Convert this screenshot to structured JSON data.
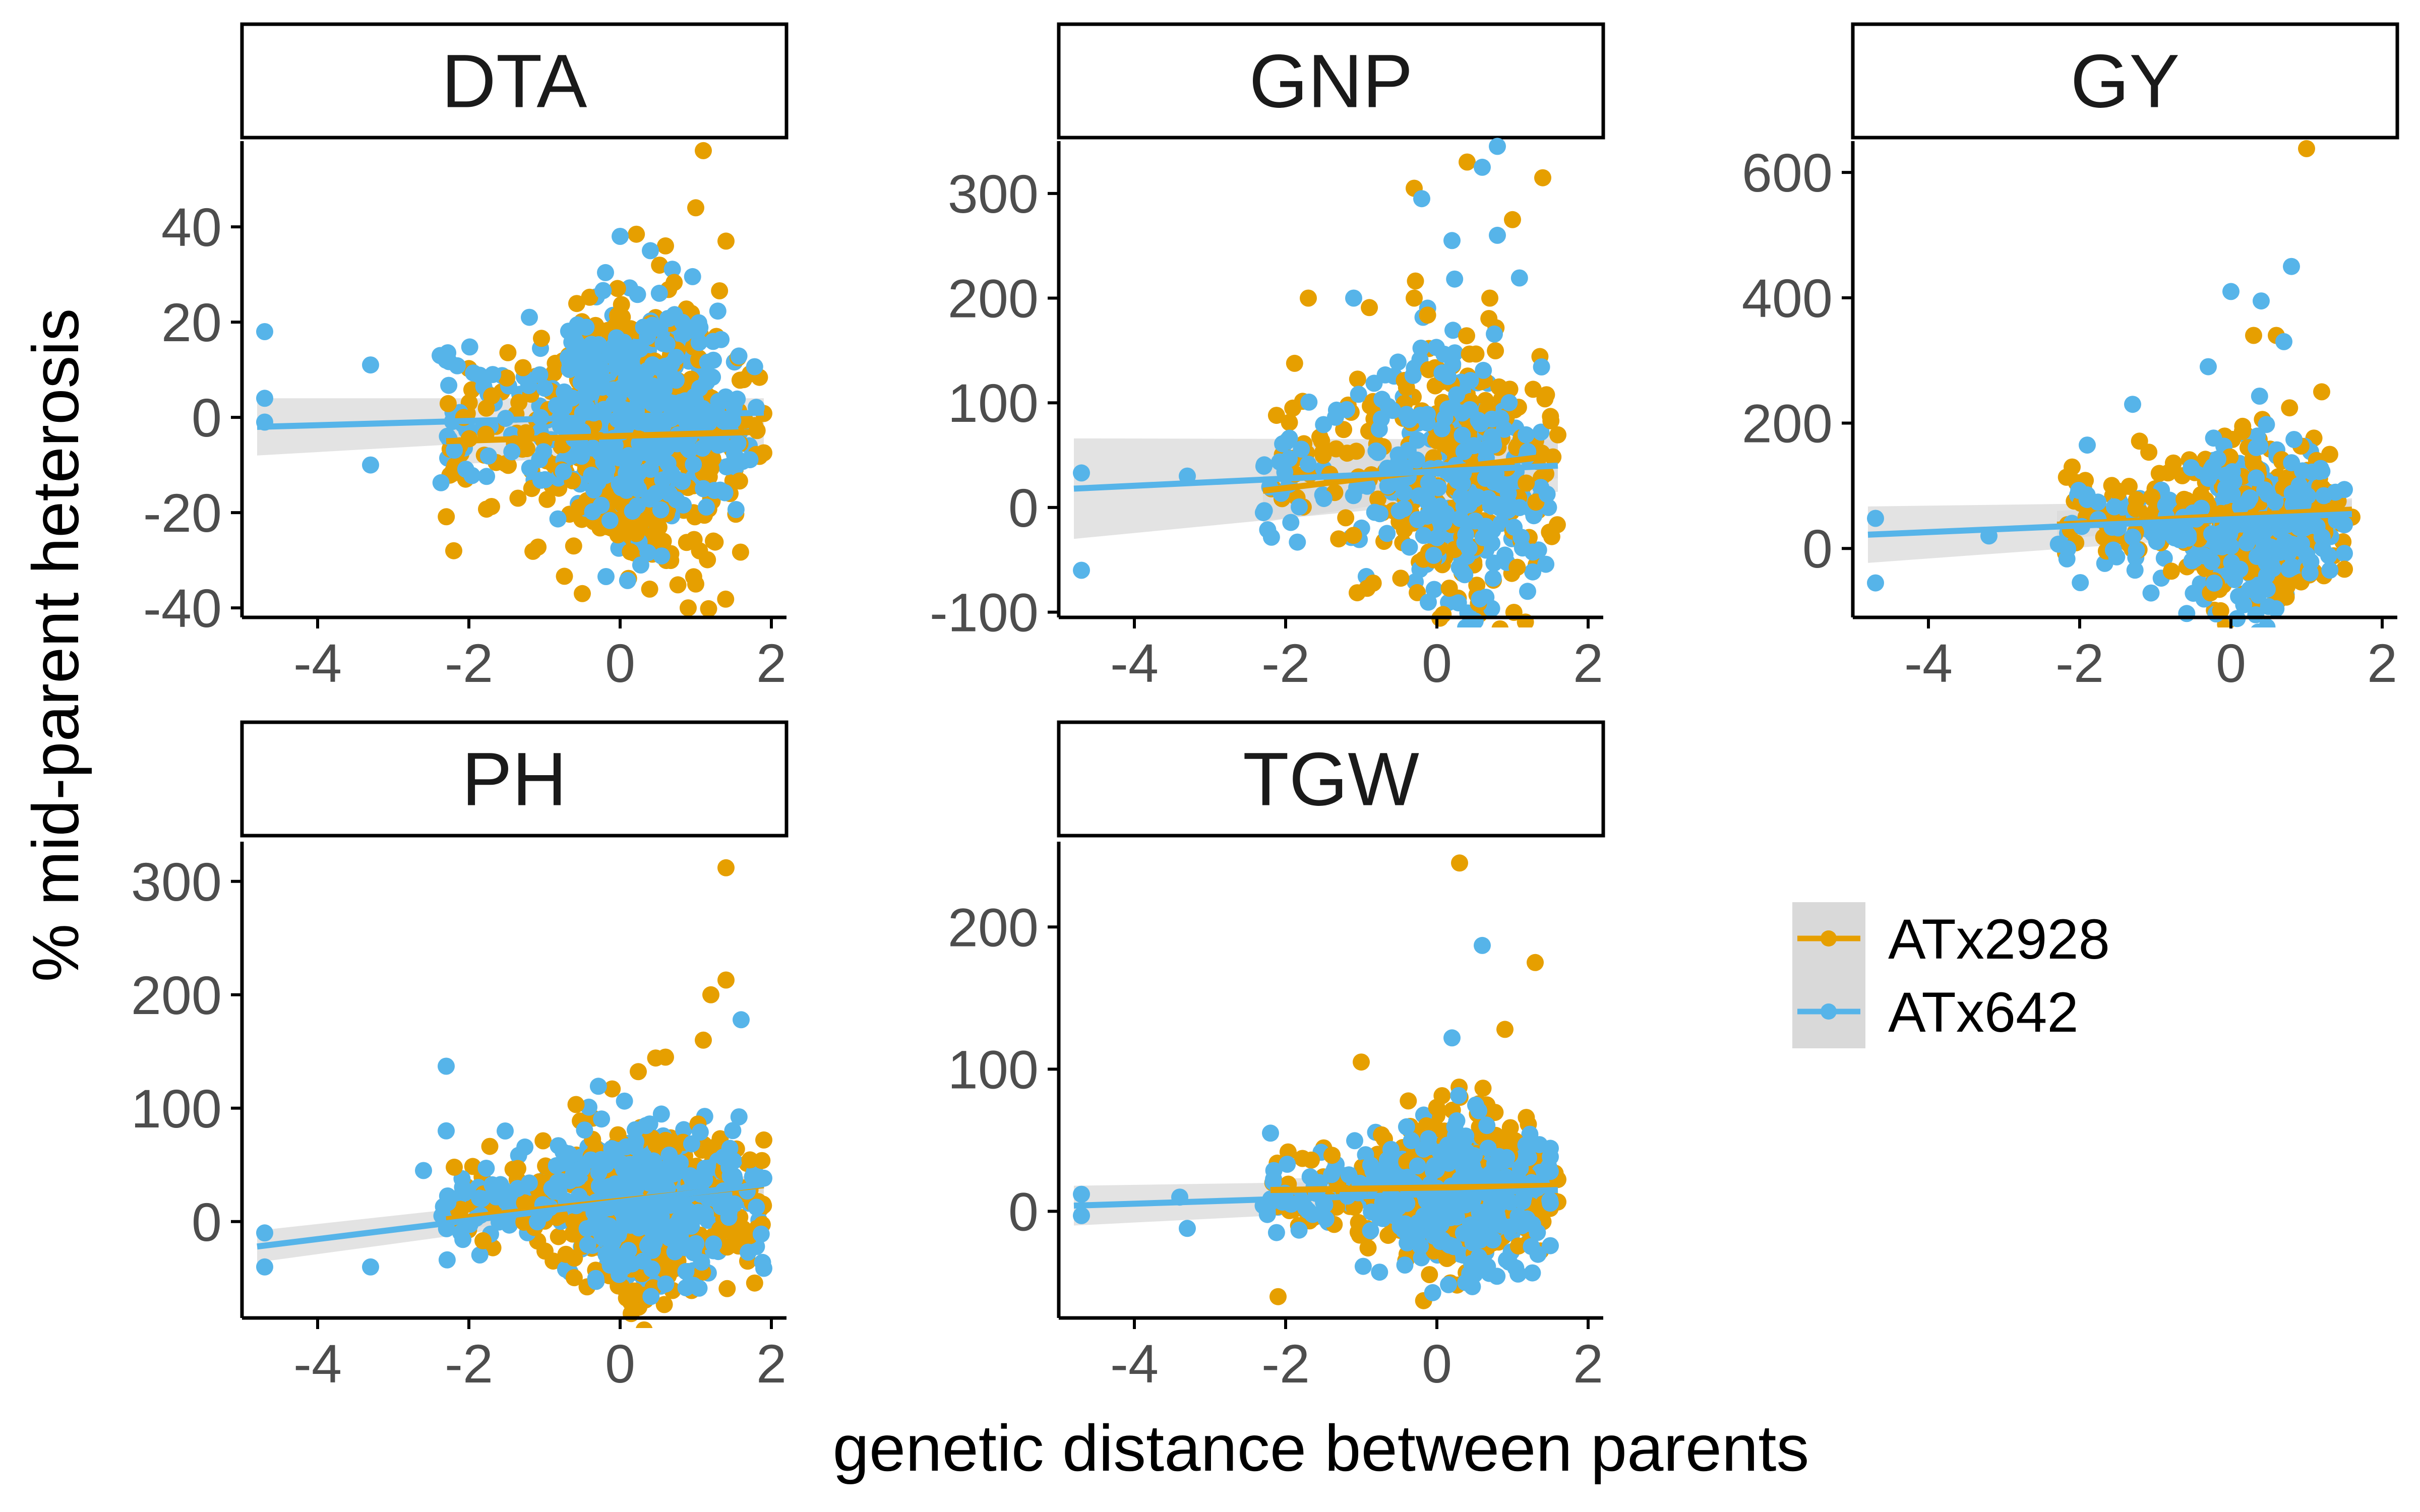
{
  "figure": {
    "ylabel": "% mid-parent heterosis",
    "xlabel": "genetic distance between parents"
  },
  "legend": {
    "items": [
      {
        "label": "ATx2928",
        "color": "#E69F00"
      },
      {
        "label": "ATx642",
        "color": "#56B4E9"
      }
    ],
    "band_color": "#d9d9d9"
  },
  "chart_data": [
    {
      "type": "scatter",
      "title": "DTA",
      "xlim": [
        -5,
        2.2
      ],
      "ylim": [
        -42,
        58
      ],
      "xticks": [
        -4,
        -2,
        0,
        2
      ],
      "yticks": [
        -40,
        -20,
        0,
        20,
        40
      ],
      "series": [
        {
          "name": "ATx2928",
          "line": {
            "x": [
              -2.3,
              1.9
            ],
            "y": [
              -5,
              -3
            ]
          },
          "band": [
            5,
            3
          ],
          "cloud": {
            "x_range": [
              -2.3,
              1.9
            ],
            "y_center": -4,
            "y_spread": 15,
            "n": 520
          },
          "points": [
            [
              1.1,
              56
            ],
            [
              1.0,
              44
            ],
            [
              1.4,
              37
            ],
            [
              0.6,
              36
            ],
            [
              -0.5,
              -37
            ],
            [
              0.9,
              -40
            ],
            [
              1.0,
              -35
            ],
            [
              -2.2,
              -28
            ]
          ]
        },
        {
          "name": "ATx642",
          "line": {
            "x": [
              -4.8,
              1.9
            ],
            "y": [
              -2,
              1
            ]
          },
          "band": [
            6,
            3
          ],
          "cloud": {
            "x_range": [
              -2.4,
              1.8
            ],
            "y_center": 0,
            "y_spread": 12,
            "n": 520
          },
          "points": [
            [
              -4.7,
              18
            ],
            [
              -4.7,
              4
            ],
            [
              -4.7,
              -1
            ],
            [
              -3.3,
              11
            ],
            [
              -3.3,
              -10
            ],
            [
              0.0,
              38
            ],
            [
              0.4,
              35
            ],
            [
              -1.2,
              21
            ],
            [
              -2.3,
              12
            ]
          ]
        }
      ]
    },
    {
      "type": "scatter",
      "title": "GNP",
      "xlim": [
        -5,
        2.2
      ],
      "ylim": [
        -105,
        350
      ],
      "xticks": [
        -4,
        -2,
        0,
        2
      ],
      "yticks": [
        -100,
        0,
        100,
        200,
        300
      ],
      "series": [
        {
          "name": "ATx2928",
          "line": {
            "x": [
              -2.3,
              1.6
            ],
            "y": [
              16,
              50
            ]
          },
          "band": [
            30,
            22
          ],
          "cloud": {
            "x_range": [
              -2.2,
              1.6
            ],
            "y_center": 40,
            "y_spread": 70,
            "n": 300
          },
          "points": [
            [
              -0.3,
              305
            ],
            [
              1.4,
              315
            ],
            [
              0.4,
              330
            ],
            [
              1.0,
              275
            ],
            [
              -1.7,
              200
            ],
            [
              0.7,
              200
            ],
            [
              -0.3,
              200
            ]
          ]
        },
        {
          "name": "ATx642",
          "line": {
            "x": [
              -4.8,
              1.6
            ],
            "y": [
              18,
              40
            ]
          },
          "band": [
            48,
            25
          ],
          "cloud": {
            "x_range": [
              -2.3,
              1.5
            ],
            "y_center": 30,
            "y_spread": 70,
            "n": 300
          },
          "points": [
            [
              -4.7,
              33
            ],
            [
              -4.7,
              -60
            ],
            [
              -3.3,
              30
            ],
            [
              0.8,
              345
            ],
            [
              0.6,
              325
            ],
            [
              -0.2,
              295
            ],
            [
              0.2,
              255
            ],
            [
              0.8,
              260
            ],
            [
              -1.1,
              200
            ]
          ]
        }
      ]
    },
    {
      "type": "scatter",
      "title": "GY",
      "xlim": [
        -5,
        2.2
      ],
      "ylim": [
        -110,
        650
      ],
      "xticks": [
        -4,
        -2,
        0,
        2
      ],
      "yticks": [
        0,
        200,
        400,
        600
      ],
      "series": [
        {
          "name": "ATx2928",
          "line": {
            "x": [
              -2.3,
              1.6
            ],
            "y": [
              38,
              62
            ]
          },
          "band": [
            22,
            18
          ],
          "cloud": {
            "x_range": [
              -2.2,
              1.6
            ],
            "y_center": 40,
            "y_spread": 70,
            "n": 320
          },
          "points": [
            [
              1.0,
              638
            ],
            [
              0.6,
              340
            ],
            [
              -2.1,
              130
            ],
            [
              1.2,
              250
            ],
            [
              0.3,
              340
            ]
          ]
        },
        {
          "name": "ATx642",
          "line": {
            "x": [
              -4.8,
              1.6
            ],
            "y": [
              22,
              55
            ]
          },
          "band": [
            45,
            22
          ],
          "cloud": {
            "x_range": [
              -2.3,
              1.5
            ],
            "y_center": 40,
            "y_spread": 70,
            "n": 320
          },
          "points": [
            [
              -4.7,
              48
            ],
            [
              -4.7,
              -55
            ],
            [
              -3.2,
              20
            ],
            [
              0.8,
              450
            ],
            [
              0.0,
              410
            ],
            [
              0.4,
              395
            ],
            [
              0.7,
              330
            ],
            [
              -1.9,
              165
            ],
            [
              -1.3,
              230
            ],
            [
              -0.3,
              290
            ]
          ]
        }
      ]
    },
    {
      "type": "scatter",
      "title": "PH",
      "xlim": [
        -5,
        2.2
      ],
      "ylim": [
        -85,
        335
      ],
      "xticks": [
        -4,
        -2,
        0,
        2
      ],
      "yticks": [
        0,
        100,
        200,
        300
      ],
      "series": [
        {
          "name": "ATx2928",
          "line": {
            "x": [
              -2.3,
              1.9
            ],
            "y": [
              2,
              32
            ]
          },
          "band": [
            10,
            10
          ],
          "cloud": {
            "x_range": [
              -2.2,
              1.9
            ],
            "y_center": 15,
            "y_spread": 38,
            "n": 500
          },
          "points": [
            [
              1.4,
              312
            ],
            [
              1.4,
              213
            ],
            [
              1.2,
              200
            ],
            [
              1.1,
              160
            ],
            [
              0.6,
              145
            ],
            [
              0.3,
              -65
            ]
          ]
        },
        {
          "name": "ATx642",
          "line": {
            "x": [
              -4.8,
              1.9
            ],
            "y": [
              -22,
              33
            ]
          },
          "band": [
            14,
            8
          ],
          "cloud": {
            "x_range": [
              -2.4,
              1.9
            ],
            "y_center": 15,
            "y_spread": 38,
            "n": 500
          },
          "points": [
            [
              -4.7,
              -10
            ],
            [
              -4.7,
              -40
            ],
            [
              -3.3,
              -40
            ],
            [
              -2.3,
              137
            ],
            [
              -2.3,
              80
            ],
            [
              1.6,
              178
            ],
            [
              -2.6,
              45
            ]
          ]
        }
      ]
    },
    {
      "type": "scatter",
      "title": "TGW",
      "xlim": [
        -5,
        2.2
      ],
      "ylim": [
        -75,
        260
      ],
      "xticks": [
        -4,
        -2,
        0,
        2
      ],
      "yticks": [
        0,
        100,
        200
      ],
      "series": [
        {
          "name": "ATx2928",
          "line": {
            "x": [
              -2.2,
              1.6
            ],
            "y": [
              15,
              18
            ]
          },
          "band": [
            8,
            8
          ],
          "cloud": {
            "x_range": [
              -2.2,
              1.6
            ],
            "y_center": 15,
            "y_spread": 28,
            "n": 420
          },
          "points": [
            [
              0.3,
              245
            ],
            [
              1.3,
              175
            ],
            [
              0.9,
              128
            ],
            [
              -2.1,
              -60
            ],
            [
              -1.0,
              105
            ]
          ]
        },
        {
          "name": "ATx642",
          "line": {
            "x": [
              -4.8,
              1.6
            ],
            "y": [
              4,
              15
            ]
          },
          "band": [
            14,
            8
          ],
          "cloud": {
            "x_range": [
              -2.3,
              1.5
            ],
            "y_center": 12,
            "y_spread": 28,
            "n": 420
          },
          "points": [
            [
              -4.7,
              12
            ],
            [
              -4.7,
              -3
            ],
            [
              -3.4,
              10
            ],
            [
              -3.3,
              -12
            ],
            [
              0.6,
              187
            ],
            [
              0.2,
              122
            ],
            [
              -2.2,
              55
            ]
          ]
        }
      ]
    }
  ]
}
